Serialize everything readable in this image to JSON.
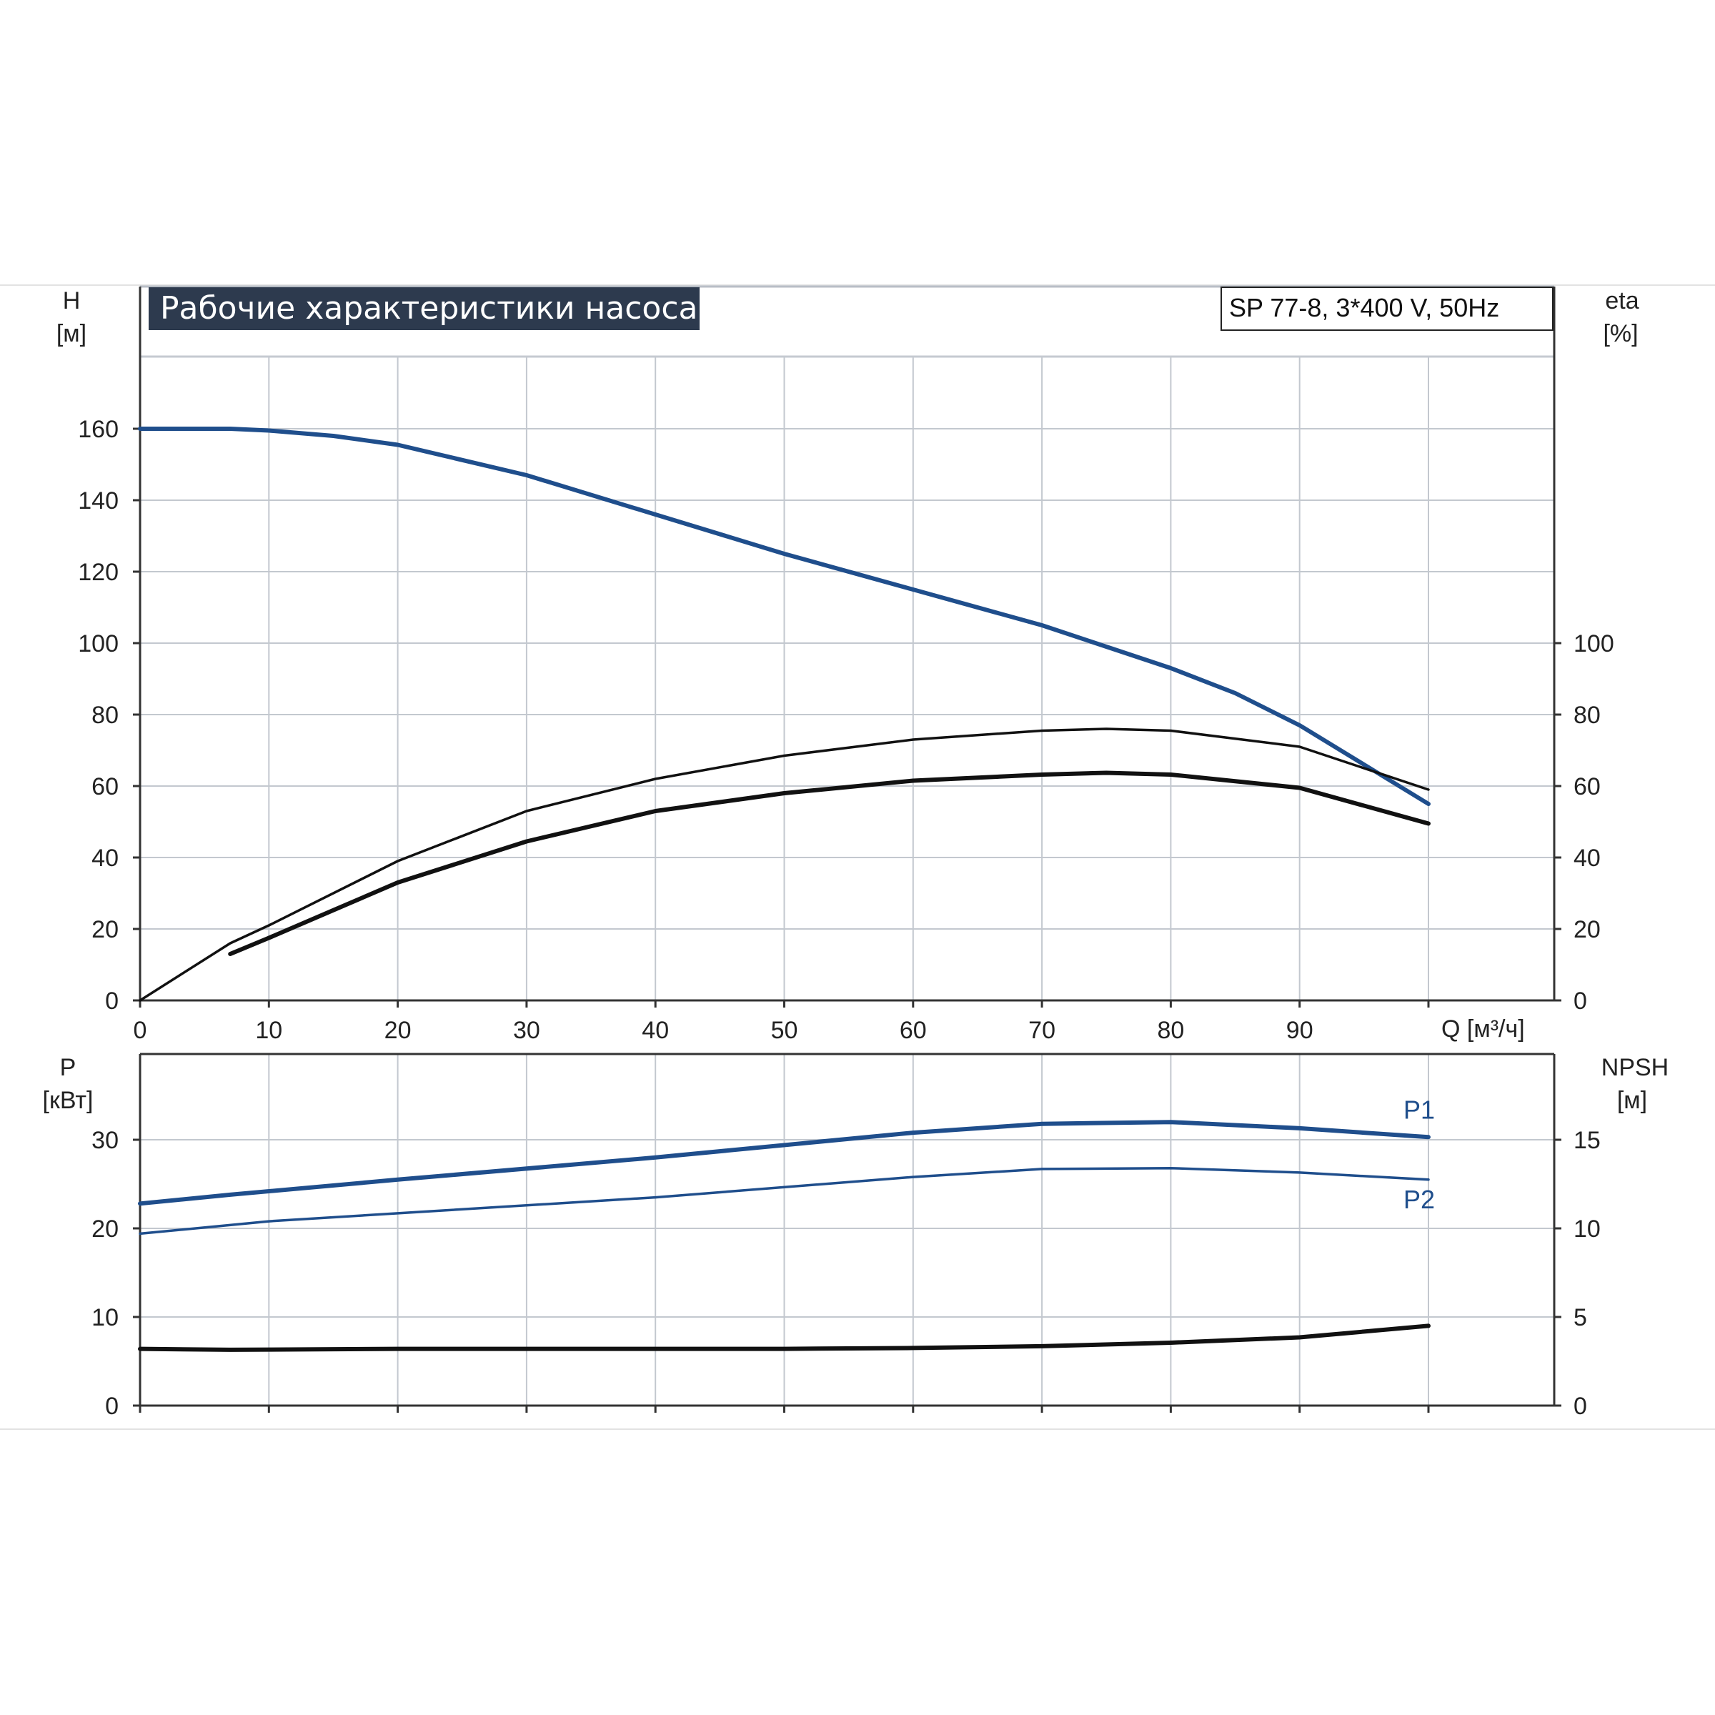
{
  "chart_data": [
    {
      "type": "line",
      "title": "Рабочие характеристики насоса",
      "model": "SP 77-8, 3*400 V, 50Hz",
      "xlabel": "Q [м³/ч]",
      "x_ticks": [
        "0",
        "10",
        "20",
        "30",
        "40",
        "50",
        "60",
        "70",
        "80",
        "90"
      ],
      "xlim": [
        0,
        110
      ],
      "ylabel_left": "H",
      "ylabel_left_unit": "[м]",
      "ylim_left": [
        0,
        200
      ],
      "yticks_left": [
        0,
        20,
        40,
        60,
        80,
        100,
        120,
        140,
        160
      ],
      "ylabel_right": "eta",
      "ylabel_right_unit": "[%]",
      "ylim_right": [
        0,
        200
      ],
      "yticks_right": [
        0,
        20,
        40,
        60,
        80,
        100
      ],
      "grid": true,
      "series": [
        {
          "axis": "left",
          "color": "#1f4e8c",
          "x": [
            0,
            7,
            10,
            15,
            20,
            30,
            40,
            50,
            60,
            70,
            80,
            85,
            90,
            95,
            100
          ],
          "y": [
            160,
            160,
            159.5,
            158,
            155.5,
            147,
            136,
            125,
            115,
            105,
            93,
            86,
            77,
            66,
            55
          ]
        },
        {
          "axis": "right",
          "color": "#111111",
          "x": [
            0,
            7,
            10,
            20,
            30,
            40,
            50,
            60,
            70,
            75,
            80,
            90,
            100
          ],
          "y": [
            0,
            16,
            21,
            39,
            53,
            62,
            68.5,
            73,
            75.5,
            76,
            75.5,
            71,
            59
          ]
        },
        {
          "axis": "right",
          "color": "#111111",
          "x": [
            7,
            10,
            20,
            30,
            40,
            50,
            60,
            70,
            75,
            80,
            90,
            100
          ],
          "y": [
            13,
            17.5,
            33,
            44.5,
            53,
            58,
            61.5,
            63.2,
            63.7,
            63.2,
            59.5,
            49.5
          ]
        }
      ]
    },
    {
      "type": "line",
      "xlim": [
        0,
        110
      ],
      "ylabel_left": "P",
      "ylabel_left_unit": "[кВт]",
      "ylim_left": [
        0,
        40
      ],
      "yticks_left": [
        0,
        10,
        20,
        30
      ],
      "ylabel_right": "NPSH",
      "ylabel_right_unit": "[м]",
      "ylim_right": [
        0,
        20
      ],
      "yticks_right": [
        0,
        5,
        10,
        15
      ],
      "grid": true,
      "series": [
        {
          "name": "P1",
          "axis": "left",
          "color": "#1f4e8c",
          "x": [
            0,
            7,
            20,
            40,
            60,
            70,
            80,
            90,
            100
          ],
          "y": [
            22.8,
            23.8,
            25.5,
            28,
            30.8,
            31.8,
            32,
            31.3,
            30.3
          ]
        },
        {
          "name": "P2",
          "axis": "left",
          "color": "#1f4e8c",
          "x": [
            0,
            10,
            20,
            40,
            60,
            70,
            80,
            90,
            100
          ],
          "y": [
            19.4,
            20.8,
            21.7,
            23.5,
            25.8,
            26.7,
            26.8,
            26.3,
            25.5
          ]
        },
        {
          "axis": "right",
          "color": "#111111",
          "x": [
            0,
            7,
            20,
            40,
            50,
            60,
            70,
            80,
            90,
            100
          ],
          "y": [
            3.2,
            3.15,
            3.2,
            3.2,
            3.2,
            3.25,
            3.35,
            3.55,
            3.85,
            4.5
          ]
        }
      ]
    }
  ]
}
